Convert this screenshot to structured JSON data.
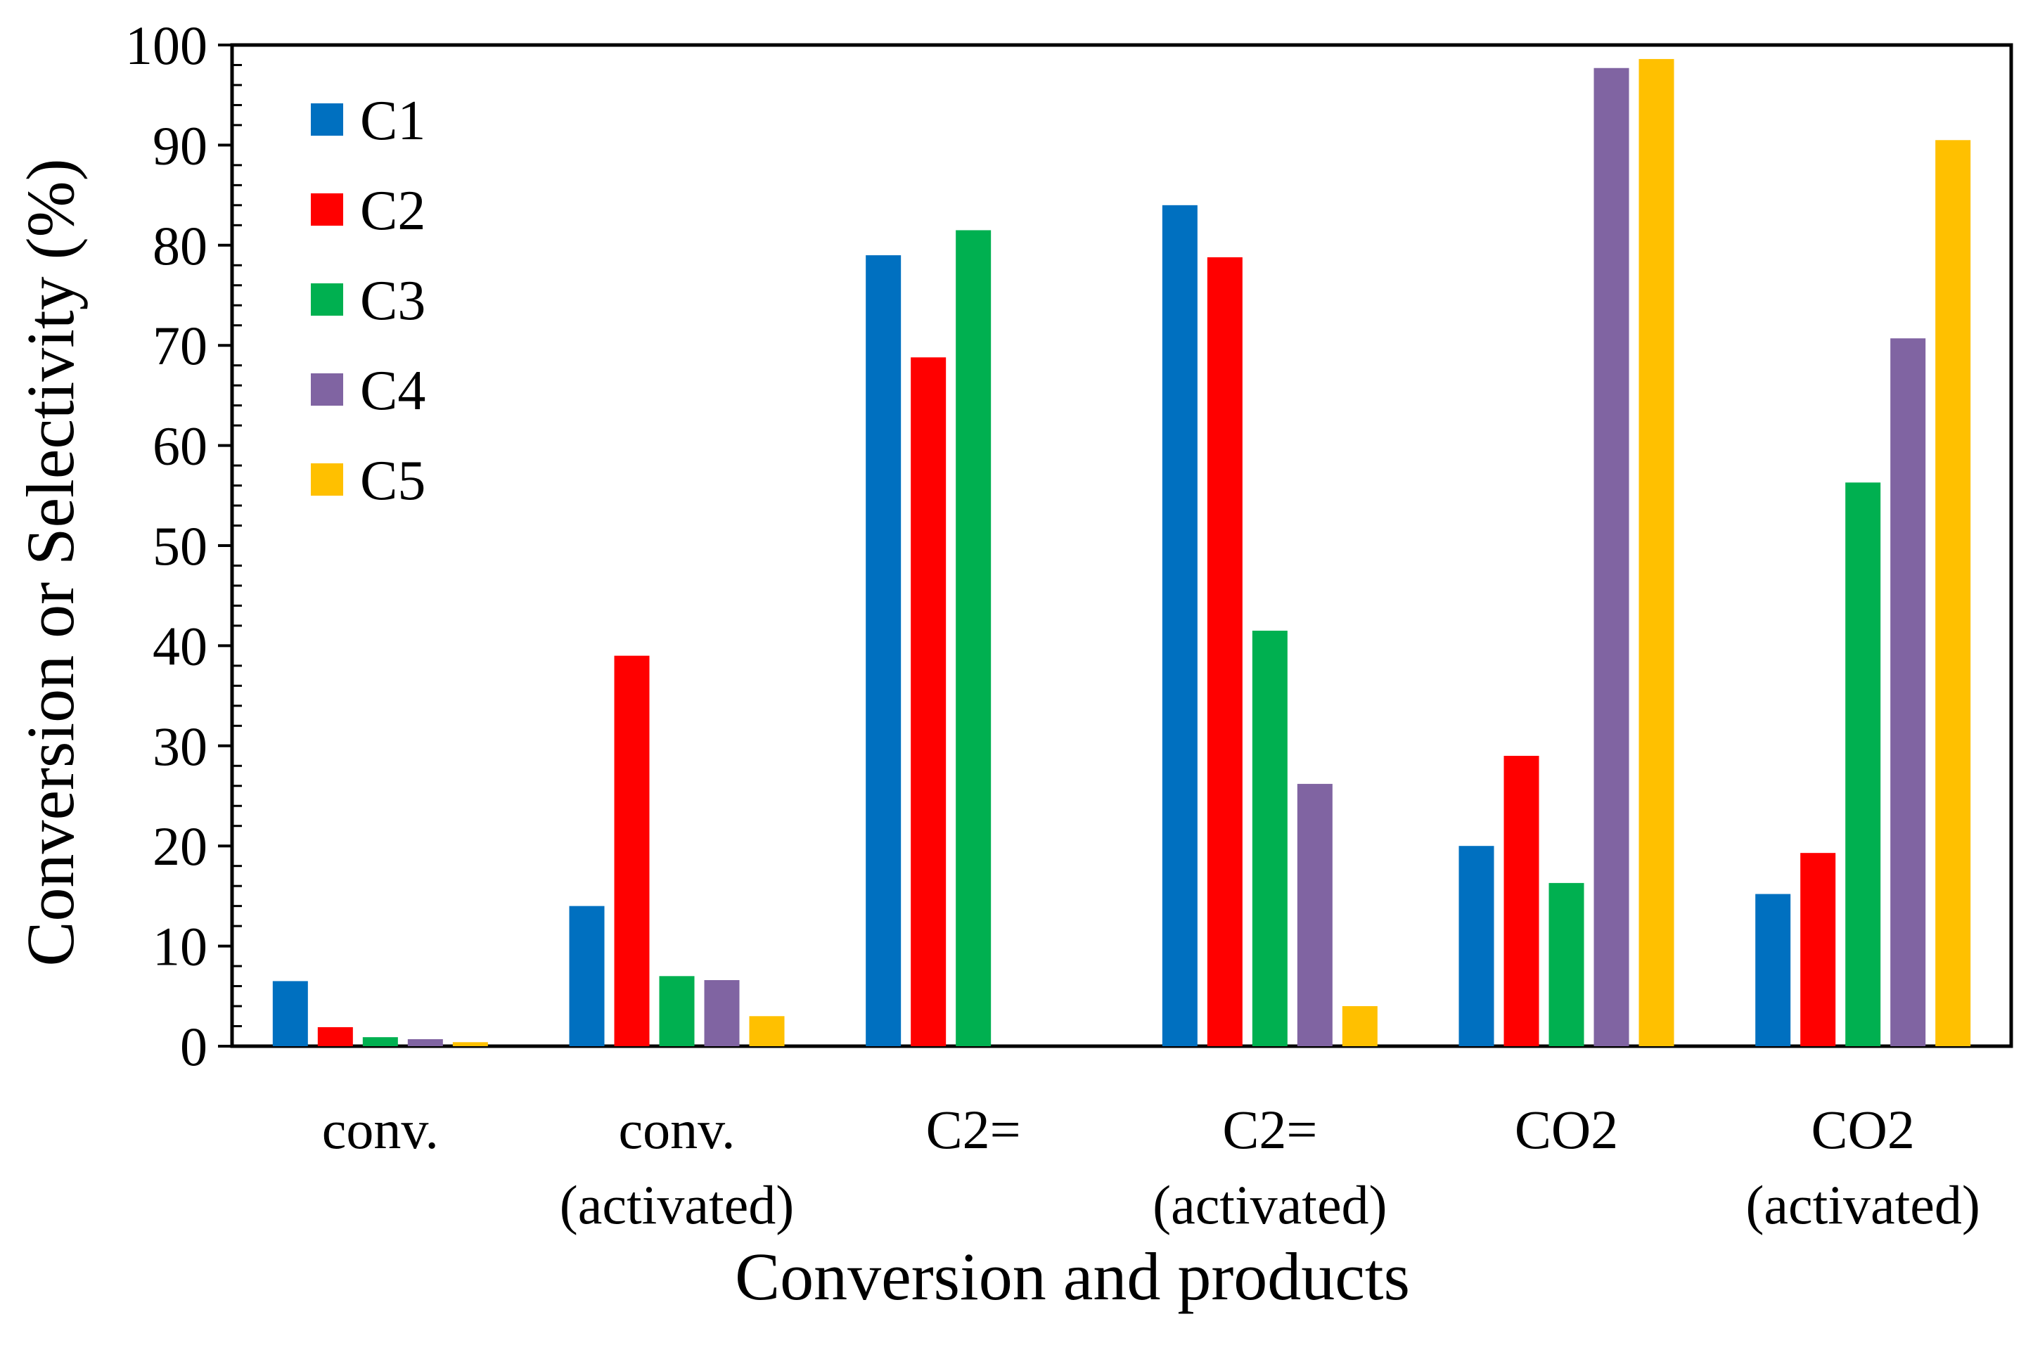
{
  "chart_data": {
    "type": "bar",
    "title": "",
    "xlabel": "Conversion and products",
    "ylabel": "Conversion or Selectivity (%)",
    "ylim": [
      0,
      100
    ],
    "yticks": [
      "0",
      "10",
      "20",
      "30",
      "40",
      "50",
      "60",
      "70",
      "80",
      "90",
      "100"
    ],
    "grid": false,
    "legend_position": "top-left",
    "categories": [
      [
        "conv."
      ],
      [
        "conv.",
        "(activated)"
      ],
      [
        "C2="
      ],
      [
        "C2=",
        "(activated)"
      ],
      [
        "CO2"
      ],
      [
        "CO2",
        "(activated)"
      ]
    ],
    "series": [
      {
        "name": "C1",
        "color": "#0070C0",
        "values": [
          6.5,
          14,
          79,
          84,
          20,
          15.2
        ]
      },
      {
        "name": "C2",
        "color": "#FF0000",
        "values": [
          1.9,
          39,
          68.8,
          78.8,
          29,
          19.3
        ]
      },
      {
        "name": "C3",
        "color": "#00B050",
        "values": [
          0.9,
          7,
          81.5,
          41.5,
          16.3,
          56.3
        ]
      },
      {
        "name": "C4",
        "color": "#8064A2",
        "values": [
          0.7,
          6.6,
          0,
          26.2,
          97.7,
          70.7
        ]
      },
      {
        "name": "C5",
        "color": "#FFC000",
        "values": [
          0.4,
          3,
          0,
          4,
          98.6,
          90.5
        ]
      }
    ]
  }
}
